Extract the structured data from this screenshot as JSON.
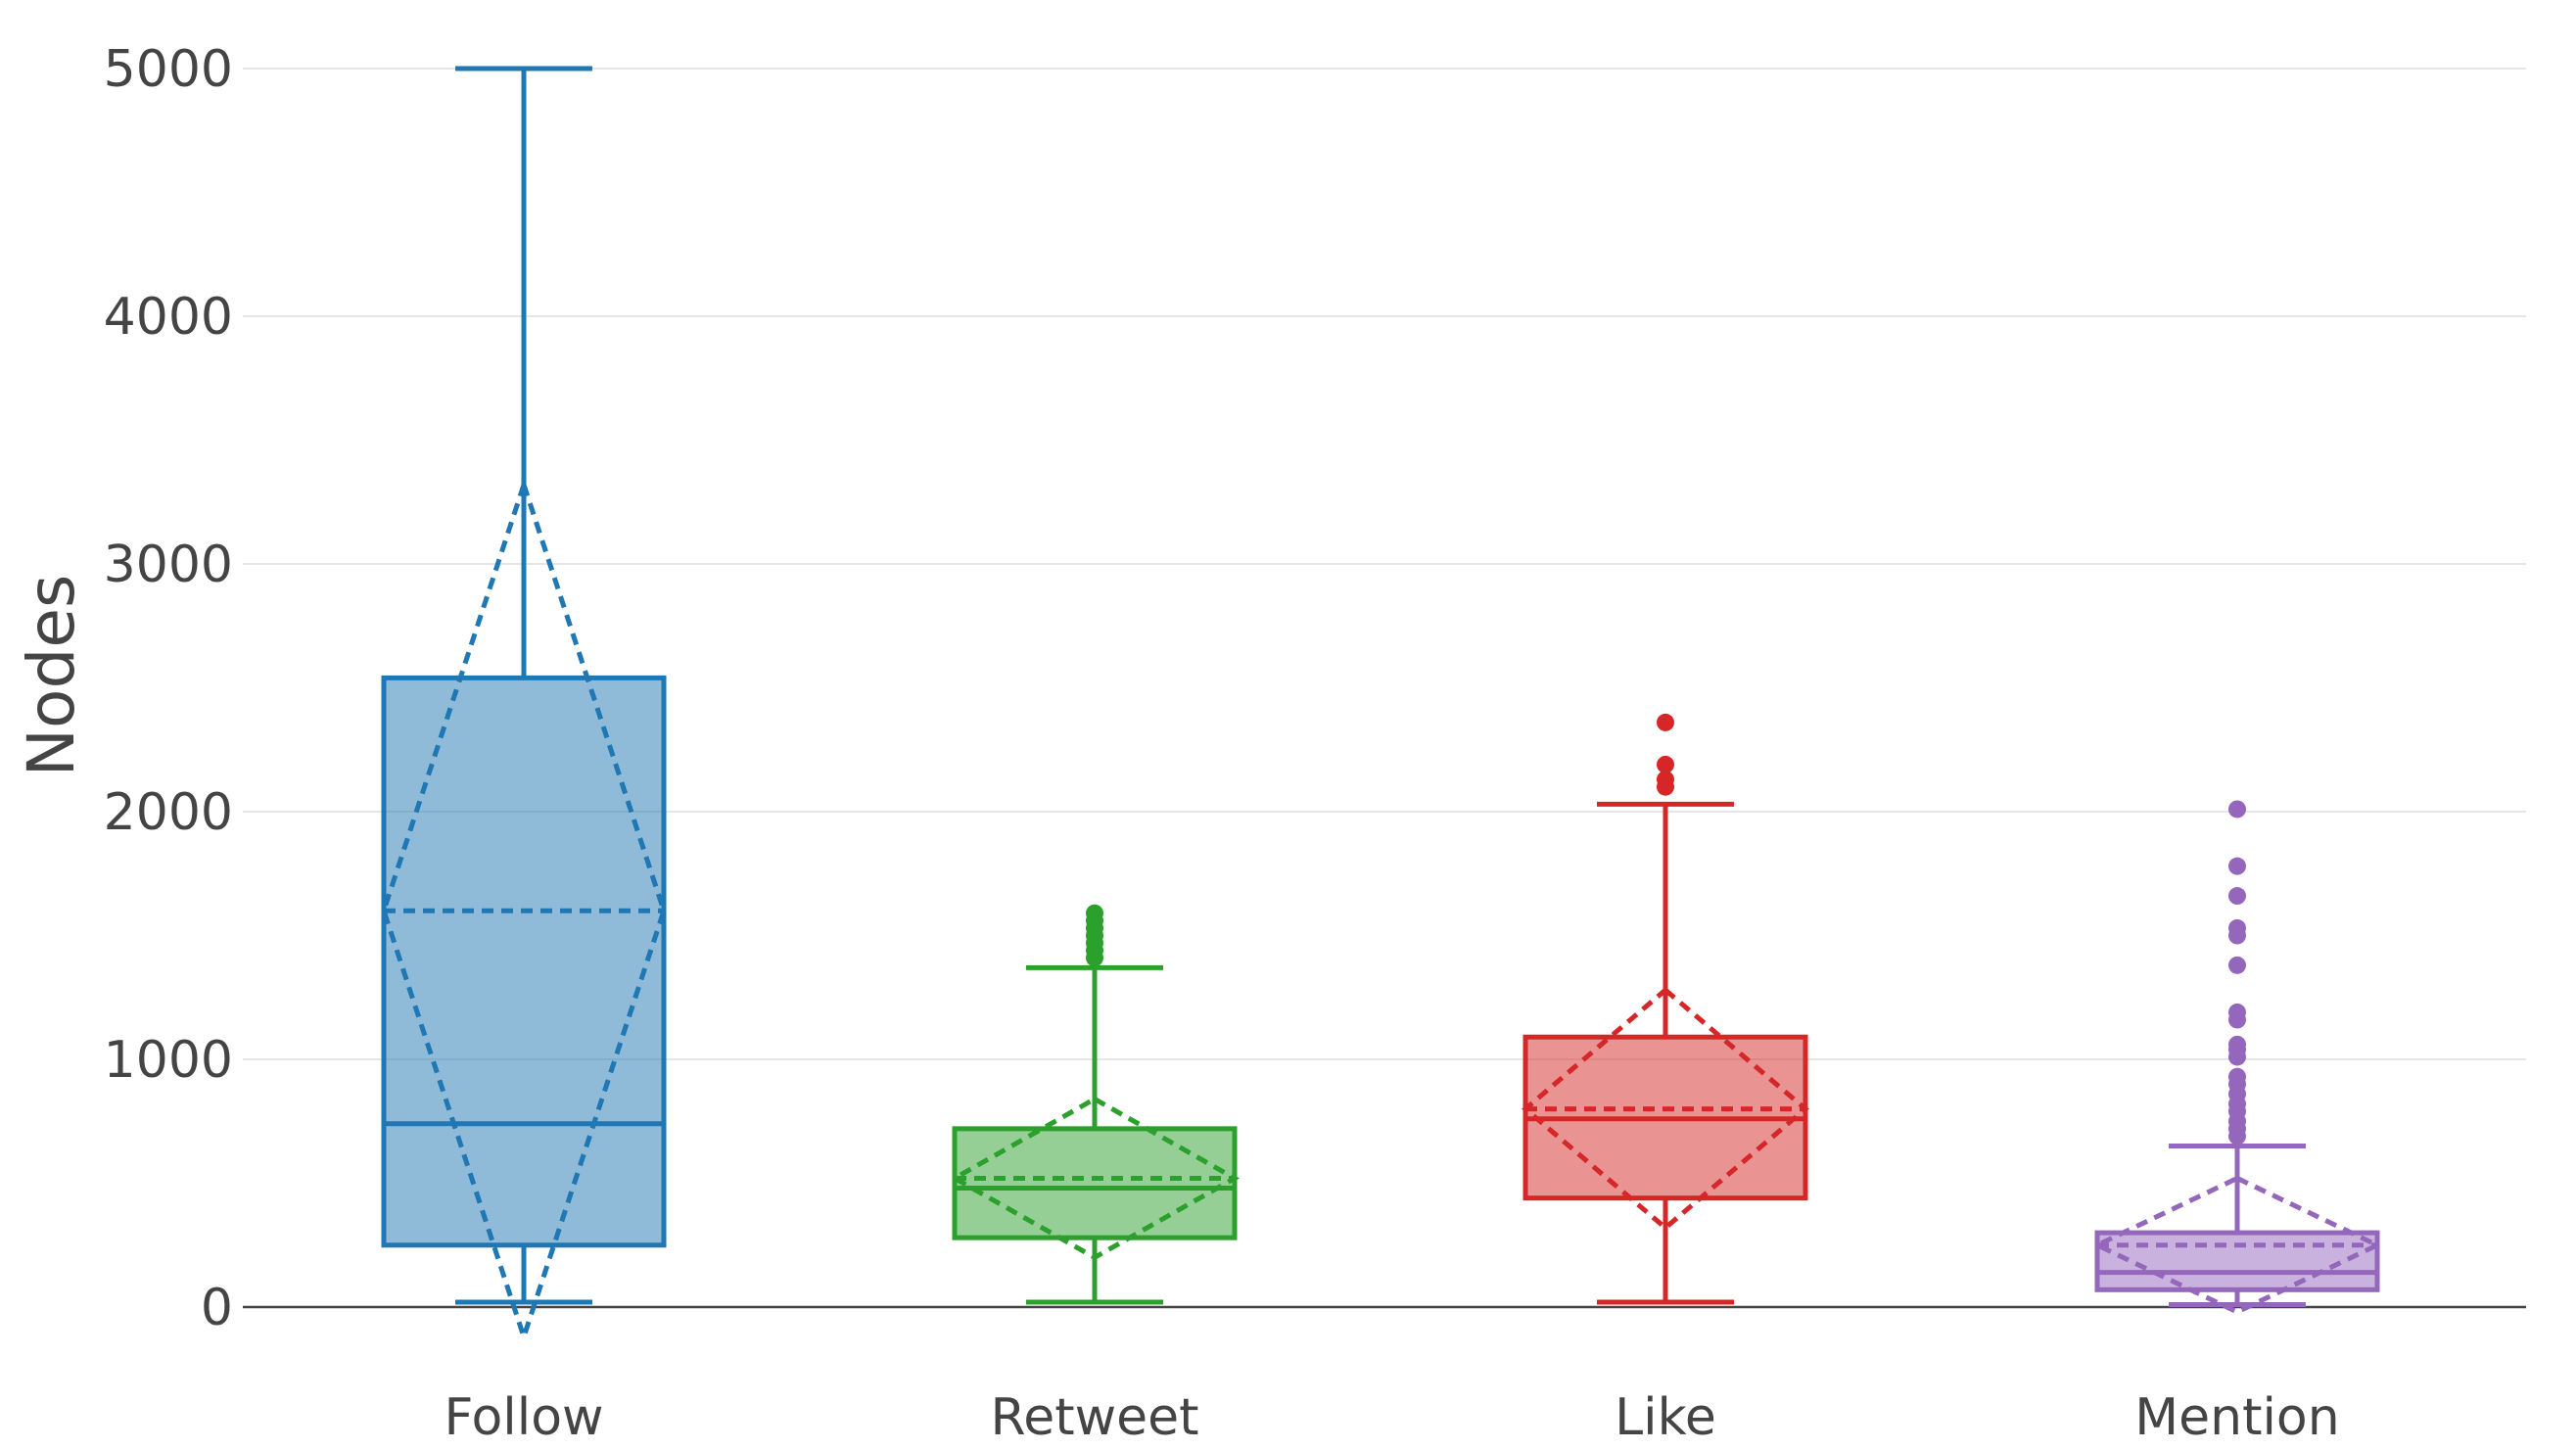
{
  "chart_data": {
    "type": "box",
    "title": "",
    "xlabel": "",
    "ylabel": "Nodes",
    "ylim": [
      -200,
      5200
    ],
    "yticks": [
      0,
      1000,
      2000,
      3000,
      4000,
      5000
    ],
    "grid": true,
    "legend": "none",
    "boxmean": "sd",
    "categories": [
      "Follow",
      "Retweet",
      "Like",
      "Mention"
    ],
    "series": [
      {
        "category": "Follow",
        "color": "#1f77b4",
        "lowerfence": 20,
        "q1": 250,
        "median": 740,
        "q3": 2540,
        "upperfence": 5000,
        "mean": 1600,
        "sd": 1720,
        "outliers": []
      },
      {
        "category": "Retweet",
        "color": "#2ca02c",
        "lowerfence": 20,
        "q1": 280,
        "median": 480,
        "q3": 720,
        "upperfence": 1370,
        "mean": 520,
        "sd": 320,
        "outliers": [
          1410,
          1440,
          1470,
          1500,
          1530,
          1560,
          1590
        ]
      },
      {
        "category": "Like",
        "color": "#d62728",
        "lowerfence": 20,
        "q1": 440,
        "median": 760,
        "q3": 1090,
        "upperfence": 2030,
        "mean": 800,
        "sd": 480,
        "outliers": [
          2100,
          2130,
          2190,
          2360
        ]
      },
      {
        "category": "Mention",
        "color": "#9467bd",
        "lowerfence": 10,
        "q1": 70,
        "median": 140,
        "q3": 300,
        "upperfence": 650,
        "mean": 250,
        "sd": 270,
        "outliers": [
          690,
          720,
          750,
          790,
          820,
          860,
          900,
          930,
          1010,
          1040,
          1060,
          1160,
          1190,
          1380,
          1500,
          1530,
          1660,
          1780,
          2010
        ]
      }
    ]
  }
}
